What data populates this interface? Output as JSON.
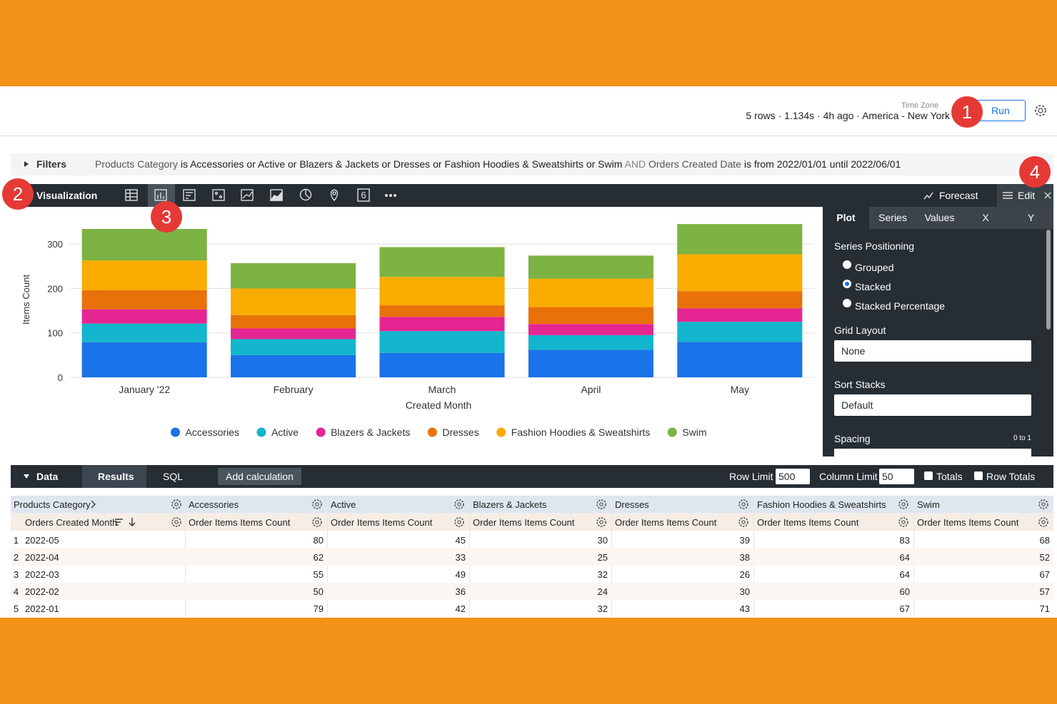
{
  "callouts": [
    "1",
    "2",
    "3",
    "4"
  ],
  "header": {
    "time_zone_label": "Time Zone",
    "run_stats": "5 rows · 1.134s · 4h ago · America - New York",
    "run_button": "Run"
  },
  "filters": {
    "label": "Filters",
    "joiner": "AND",
    "items": [
      {
        "field": "Products Category",
        "condition": "is Accessories or Active or Blazers & Jackets or Dresses or Fashion Hoodies & Sweatshirts or Swim"
      },
      {
        "field": "Orders Created Date",
        "condition": "is from 2022/01/01 until 2022/06/01"
      }
    ]
  },
  "visualization": {
    "label": "Visualization",
    "icon_badge": "6",
    "forecast": "Forecast",
    "edit": "Edit"
  },
  "edit_panel": {
    "tabs": [
      "Plot",
      "Series",
      "Values",
      "X",
      "Y"
    ],
    "series_positioning": {
      "label": "Series Positioning",
      "options": [
        "Grouped",
        "Stacked",
        "Stacked Percentage"
      ],
      "selected": 1
    },
    "grid_layout": {
      "label": "Grid Layout",
      "value": "None"
    },
    "sort_stacks": {
      "label": "Sort Stacks",
      "value": "Default"
    },
    "spacing": {
      "label": "Spacing",
      "range": "0 to 1"
    }
  },
  "data_panel": {
    "label": "Data",
    "tabs": [
      "Results",
      "SQL"
    ],
    "add_calculation": "Add calculation",
    "row_limit_label": "Row Limit",
    "row_limit": 500,
    "column_limit_label": "Column Limit",
    "column_limit": 50,
    "totals": "Totals",
    "row_totals": "Row Totals"
  },
  "data_table": {
    "pivot_header": "Products Category",
    "dimension_header": "Orders Created Month",
    "measure_header": "Order Items Items Count",
    "rows": [
      {
        "index": 1,
        "month": "2022-05",
        "values": [
          80,
          45,
          30,
          39,
          83,
          68
        ]
      },
      {
        "index": 2,
        "month": "2022-04",
        "values": [
          62,
          33,
          25,
          38,
          64,
          52
        ]
      },
      {
        "index": 3,
        "month": "2022-03",
        "values": [
          55,
          49,
          32,
          26,
          64,
          67
        ]
      },
      {
        "index": 4,
        "month": "2022-02",
        "values": [
          50,
          36,
          24,
          30,
          60,
          57
        ]
      },
      {
        "index": 5,
        "month": "2022-01",
        "values": [
          79,
          42,
          32,
          43,
          67,
          71
        ]
      }
    ]
  },
  "chart_data": {
    "type": "bar",
    "stacked": true,
    "x_label": "Created Month",
    "y_label": "Items Count",
    "categories": [
      "January '22",
      "February",
      "March",
      "April",
      "May"
    ],
    "series": [
      {
        "name": "Accessories",
        "color": "#1a73e8",
        "values": [
          79,
          50,
          55,
          62,
          80
        ]
      },
      {
        "name": "Active",
        "color": "#12b5cb",
        "values": [
          42,
          36,
          49,
          33,
          45
        ]
      },
      {
        "name": "Blazers & Jackets",
        "color": "#e52592",
        "values": [
          32,
          24,
          32,
          25,
          30
        ]
      },
      {
        "name": "Dresses",
        "color": "#e8710a",
        "values": [
          43,
          30,
          26,
          38,
          39
        ]
      },
      {
        "name": "Fashion Hoodies & Sweatshirts",
        "color": "#f9ab00",
        "values": [
          67,
          60,
          64,
          64,
          83
        ]
      },
      {
        "name": "Swim",
        "color": "#7cb342",
        "values": [
          71,
          57,
          67,
          52,
          68
        ]
      }
    ],
    "ylim": [
      0,
      350
    ],
    "yticks": [
      0,
      100,
      200,
      300
    ],
    "grid": true,
    "legend": "bottom"
  }
}
